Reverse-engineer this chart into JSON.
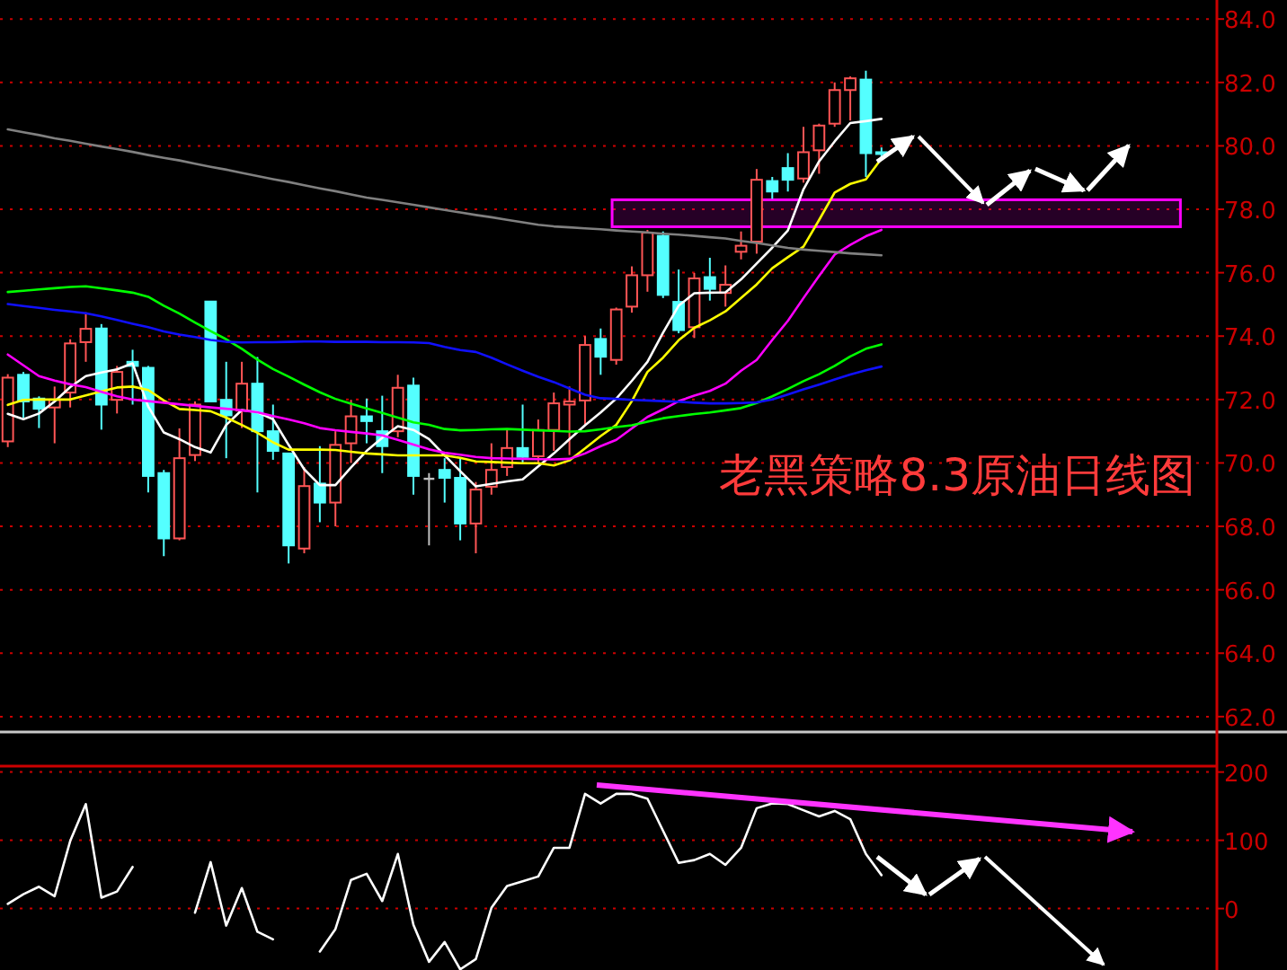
{
  "chart_data": [
    {
      "type": "candlestick",
      "categories": [
        null,
        null,
        null,
        null,
        null,
        null,
        null,
        null,
        null,
        null,
        null,
        null,
        null,
        null,
        null,
        null,
        null,
        null,
        null,
        null,
        null,
        null,
        null,
        null,
        null,
        null,
        null,
        null,
        null,
        null,
        null,
        null,
        null,
        null,
        null,
        null,
        null,
        null,
        null,
        null,
        null,
        null,
        null,
        null,
        null,
        null,
        null,
        null,
        null,
        null,
        null,
        null,
        null,
        null,
        null,
        null,
        null,
        null,
        null,
        null,
        null,
        null,
        null,
        null,
        null,
        null,
        null,
        null,
        null,
        null,
        null,
        null,
        null,
        null,
        null,
        null,
        null,
        null
      ],
      "ohlc": [
        [
          70.68,
          72.8,
          70.5,
          72.69
        ],
        [
          72.78,
          72.87,
          71.43,
          71.94
        ],
        [
          72.03,
          72.1,
          71.1,
          71.71
        ],
        [
          71.75,
          72.41,
          70.62,
          71.99
        ],
        [
          72.22,
          73.9,
          71.75,
          73.77
        ],
        [
          73.81,
          74.75,
          73.19,
          74.23
        ],
        [
          74.24,
          74.38,
          71.05,
          71.84
        ],
        [
          71.99,
          73.06,
          71.56,
          72.87
        ],
        [
          73.19,
          73.57,
          71.84,
          73.06
        ],
        [
          73.0,
          73.06,
          69.07,
          69.59
        ],
        [
          69.68,
          69.78,
          67.06,
          67.62
        ],
        [
          67.62,
          71.09,
          67.56,
          70.15
        ],
        [
          70.25,
          71.94,
          70.06,
          71.84
        ],
        [
          75.09,
          75.09,
          71.94,
          71.94
        ],
        [
          71.99,
          73.19,
          70.15,
          71.5
        ],
        [
          71.65,
          73.19,
          71.1,
          72.5
        ],
        [
          72.5,
          73.34,
          69.07,
          71.0
        ],
        [
          71.0,
          71.84,
          70.1,
          70.38
        ],
        [
          70.3,
          70.3,
          66.83,
          67.4
        ],
        [
          67.3,
          69.87,
          67.15,
          69.27
        ],
        [
          69.35,
          70.53,
          68.13,
          68.75
        ],
        [
          68.75,
          71.0,
          68.0,
          70.57
        ],
        [
          70.62,
          71.99,
          70.0,
          71.47
        ],
        [
          71.47,
          72.03,
          70.62,
          71.32
        ],
        [
          71.0,
          72.12,
          69.68,
          70.53
        ],
        [
          71.0,
          72.78,
          70.81,
          72.37
        ],
        [
          72.44,
          72.69,
          69.0,
          69.59
        ],
        [
          69.5,
          69.68,
          67.4,
          69.5
        ],
        [
          69.78,
          70.15,
          68.75,
          69.53
        ],
        [
          69.53,
          70.15,
          67.56,
          68.09
        ],
        [
          68.09,
          69.4,
          67.15,
          69.16
        ],
        [
          69.25,
          70.62,
          69.0,
          69.78
        ],
        [
          69.87,
          71.04,
          69.59,
          70.47
        ],
        [
          70.47,
          71.84,
          69.96,
          70.19
        ],
        [
          70.21,
          71.37,
          69.96,
          71.04
        ],
        [
          71.04,
          72.22,
          70.38,
          71.88
        ],
        [
          71.84,
          72.41,
          70.25,
          71.94
        ],
        [
          71.97,
          74.0,
          71.19,
          73.72
        ],
        [
          73.91,
          74.24,
          72.78,
          73.35
        ],
        [
          73.25,
          74.9,
          73.1,
          74.84
        ],
        [
          74.93,
          76.2,
          74.74,
          75.92
        ],
        [
          75.92,
          77.35,
          75.4,
          77.26
        ],
        [
          77.16,
          77.3,
          75.2,
          75.3
        ],
        [
          75.08,
          76.1,
          74.09,
          74.19
        ],
        [
          74.28,
          75.99,
          73.94,
          75.82
        ],
        [
          75.86,
          76.47,
          75.12,
          75.49
        ],
        [
          75.36,
          76.23,
          74.93,
          75.62
        ],
        [
          76.66,
          77.3,
          76.42,
          76.85
        ],
        [
          76.98,
          79.27,
          76.6,
          78.93
        ],
        [
          78.89,
          79.02,
          78.33,
          78.56
        ],
        [
          79.3,
          79.77,
          78.56,
          78.93
        ],
        [
          78.97,
          80.6,
          78.84,
          79.8
        ],
        [
          79.86,
          80.7,
          79.12,
          80.64
        ],
        [
          80.7,
          82.0,
          80.6,
          81.76
        ],
        [
          81.76,
          82.19,
          80.8,
          82.13
        ],
        [
          82.09,
          82.37,
          79.02,
          79.77
        ],
        [
          79.8,
          79.95,
          79.62,
          79.76
        ],
        null,
        null,
        null,
        null,
        null,
        null,
        null,
        null,
        null,
        null,
        null,
        null,
        null,
        null,
        null,
        null,
        null,
        null,
        null,
        null,
        null
      ],
      "series": [
        {
          "type": "line",
          "color": "#ffffff",
          "values": [
            71.55,
            71.38,
            71.56,
            71.94,
            72.39,
            72.74,
            72.85,
            72.95,
            73.14,
            71.78,
            70.96,
            70.75,
            70.5,
            70.33,
            71.2,
            71.67,
            71.6,
            71.38,
            70.57,
            69.8,
            69.3,
            69.3,
            69.86,
            70.38,
            70.79,
            71.16,
            71.04,
            70.75,
            70.24,
            69.74,
            69.26,
            69.34,
            69.42,
            69.48,
            69.89,
            70.3,
            70.75,
            71.19,
            71.59,
            72.03,
            72.59,
            73.19,
            74.11,
            74.96,
            75.35,
            75.37,
            75.38,
            75.79,
            76.29,
            76.79,
            77.33,
            78.63,
            79.51,
            80.14,
            80.72,
            80.78,
            80.85,
            null,
            null,
            null,
            null,
            null,
            null,
            null,
            null,
            null,
            null,
            null,
            null,
            null,
            null,
            null,
            null,
            null,
            null,
            null,
            null,
            null
          ]
        },
        {
          "type": "line",
          "color": "#ffff00",
          "values": [
            71.83,
            71.99,
            72.0,
            72.0,
            72.0,
            72.13,
            72.26,
            72.38,
            72.41,
            72.3,
            71.97,
            71.7,
            71.67,
            71.63,
            71.43,
            71.2,
            70.95,
            70.65,
            70.42,
            70.42,
            70.42,
            70.41,
            70.35,
            70.3,
            70.27,
            70.24,
            70.24,
            70.24,
            70.24,
            70.16,
            70.05,
            70.03,
            70.01,
            69.99,
            69.99,
            69.92,
            70.08,
            70.46,
            70.85,
            71.2,
            71.95,
            72.87,
            73.32,
            73.87,
            74.26,
            74.5,
            74.78,
            75.2,
            75.63,
            76.14,
            76.49,
            76.82,
            77.66,
            78.53,
            78.8,
            78.94,
            79.6,
            null,
            null,
            null,
            null,
            null,
            null,
            null,
            null,
            null,
            null,
            null,
            null,
            null,
            null,
            null,
            null,
            null,
            null,
            null,
            null,
            null
          ]
        },
        {
          "type": "line",
          "color": "#ff00ff",
          "values": [
            73.42,
            73.08,
            72.74,
            72.6,
            72.48,
            72.39,
            72.24,
            72.1,
            72.0,
            71.95,
            71.9,
            71.85,
            71.8,
            71.75,
            71.71,
            71.66,
            71.6,
            71.48,
            71.37,
            71.25,
            71.1,
            71.03,
            70.98,
            70.93,
            70.87,
            70.73,
            70.58,
            70.43,
            70.32,
            70.26,
            70.19,
            70.15,
            70.14,
            70.13,
            70.12,
            70.11,
            70.13,
            70.3,
            70.53,
            70.73,
            71.09,
            71.45,
            71.69,
            71.95,
            72.12,
            72.27,
            72.5,
            72.91,
            73.25,
            73.88,
            74.48,
            75.2,
            75.9,
            76.57,
            76.88,
            77.15,
            77.35,
            null,
            null,
            null,
            null,
            null,
            null,
            null,
            null,
            null,
            null,
            null,
            null,
            null,
            null,
            null,
            null,
            null,
            null,
            null,
            null,
            null
          ]
        },
        {
          "type": "line",
          "color": "#00ff00",
          "values": [
            75.39,
            75.43,
            75.47,
            75.51,
            75.55,
            75.57,
            75.51,
            75.44,
            75.37,
            75.24,
            74.96,
            74.71,
            74.43,
            74.16,
            73.9,
            73.6,
            73.26,
            72.96,
            72.72,
            72.47,
            72.23,
            72.02,
            71.87,
            71.72,
            71.58,
            71.43,
            71.28,
            71.2,
            71.07,
            71.03,
            71.04,
            71.06,
            71.07,
            71.05,
            71.03,
            71.01,
            70.99,
            71.0,
            71.06,
            71.13,
            71.19,
            71.3,
            71.41,
            71.48,
            71.54,
            71.59,
            71.66,
            71.73,
            71.89,
            72.1,
            72.33,
            72.58,
            72.8,
            73.06,
            73.36,
            73.6,
            73.74,
            null,
            null,
            null,
            null,
            null,
            null,
            null,
            null,
            null,
            null,
            null,
            null,
            null,
            null,
            null,
            null,
            null,
            null,
            null,
            null,
            null
          ]
        },
        {
          "type": "line",
          "color": "#1010ff",
          "values": [
            75.01,
            74.95,
            74.89,
            74.83,
            74.78,
            74.72,
            74.62,
            74.51,
            74.39,
            74.28,
            74.15,
            74.05,
            73.97,
            73.88,
            73.82,
            73.8,
            73.81,
            73.81,
            73.82,
            73.83,
            73.83,
            73.82,
            73.82,
            73.82,
            73.81,
            73.81,
            73.8,
            73.78,
            73.66,
            73.56,
            73.5,
            73.32,
            73.11,
            72.91,
            72.72,
            72.55,
            72.35,
            72.15,
            72.04,
            72.02,
            71.99,
            71.97,
            71.95,
            71.93,
            71.9,
            71.88,
            71.88,
            71.89,
            71.91,
            72.0,
            72.16,
            72.32,
            72.47,
            72.63,
            72.79,
            72.92,
            73.04,
            null,
            null,
            null,
            null,
            null,
            null,
            null,
            null,
            null,
            null,
            null,
            null,
            null,
            null,
            null,
            null,
            null,
            null,
            null,
            null,
            null
          ]
        },
        {
          "type": "line",
          "color": "#808080",
          "values": [
            80.52,
            80.43,
            80.34,
            80.24,
            80.16,
            80.07,
            79.98,
            79.9,
            79.81,
            79.71,
            79.62,
            79.54,
            79.44,
            79.34,
            79.25,
            79.15,
            79.05,
            78.95,
            78.86,
            78.76,
            78.66,
            78.57,
            78.47,
            78.37,
            78.3,
            78.22,
            78.14,
            78.06,
            77.98,
            77.9,
            77.82,
            77.75,
            77.67,
            77.59,
            77.51,
            77.46,
            77.43,
            77.4,
            77.37,
            77.33,
            77.3,
            77.27,
            77.23,
            77.2,
            77.16,
            77.12,
            77.08,
            77.0,
            76.94,
            76.86,
            76.78,
            76.73,
            76.69,
            76.65,
            76.61,
            76.58,
            76.55,
            null,
            null,
            null,
            null,
            null,
            null,
            null,
            null,
            null,
            null,
            null,
            null,
            null,
            null,
            null,
            null,
            null,
            null,
            null,
            null,
            null
          ]
        }
      ],
      "ylim": [
        61.6,
        84.6
      ],
      "yticks": [
        {
          "value": 62,
          "label": "62.0"
        },
        {
          "value": 64,
          "label": "64.0"
        },
        {
          "value": 66,
          "label": "66.0"
        },
        {
          "value": 68,
          "label": "68.0"
        },
        {
          "value": 70,
          "label": "70.0"
        },
        {
          "value": 72,
          "label": "72.0"
        },
        {
          "value": 74,
          "label": "74.0"
        },
        {
          "value": 76,
          "label": "76.0"
        },
        {
          "value": 78,
          "label": "78.0"
        },
        {
          "value": 80,
          "label": "80.0"
        },
        {
          "value": 82,
          "label": "82.0"
        },
        {
          "value": 84,
          "label": "84.0"
        }
      ],
      "bands": [
        {
          "axis": "y",
          "from": 77.45,
          "to": 78.3,
          "color": "#ff00ff"
        }
      ],
      "annotations": [
        "老黑策略8.3原油日线图"
      ],
      "grid": "y",
      "tick_labels": "y"
    },
    {
      "type": "line",
      "categories": [
        null,
        null,
        null,
        null,
        null,
        null,
        null,
        null,
        null,
        null,
        null,
        null,
        null,
        null,
        null,
        null,
        null,
        null,
        null,
        null,
        null,
        null,
        null,
        null,
        null,
        null,
        null,
        null,
        null,
        null,
        null,
        null,
        null,
        null,
        null,
        null,
        null,
        null,
        null,
        null,
        null,
        null,
        null,
        null,
        null,
        null,
        null,
        null,
        null,
        null,
        null,
        null,
        null,
        null,
        null,
        null,
        null,
        null,
        null,
        null,
        null,
        null,
        null,
        null,
        null,
        null,
        null,
        null,
        null,
        null,
        null,
        null,
        null,
        null,
        null,
        null,
        null,
        null
      ],
      "series": [
        {
          "color": "#ffffff",
          "values": [
            7,
            21,
            32,
            18,
            99,
            153,
            16,
            25,
            61,
            null,
            null,
            null,
            -6,
            68,
            -25,
            30,
            -34,
            -45,
            null,
            null,
            -63,
            -30,
            42,
            51,
            11,
            80,
            -24,
            -78,
            -49,
            -89,
            -74,
            1,
            33,
            40,
            47,
            89,
            89,
            168,
            154,
            168,
            168,
            161,
            114,
            67,
            71,
            80,
            64,
            89,
            147,
            154,
            153,
            144,
            135,
            143,
            131,
            80,
            49,
            null,
            null,
            null,
            null,
            null,
            null,
            null,
            null,
            null,
            null,
            null,
            null,
            null,
            null,
            null,
            null,
            null,
            null,
            null,
            null,
            null
          ]
        }
      ],
      "ylim": [
        -90,
        210
      ],
      "yticks": [
        0,
        100,
        200
      ],
      "grid": "y",
      "tick_labels": "y"
    }
  ]
}
